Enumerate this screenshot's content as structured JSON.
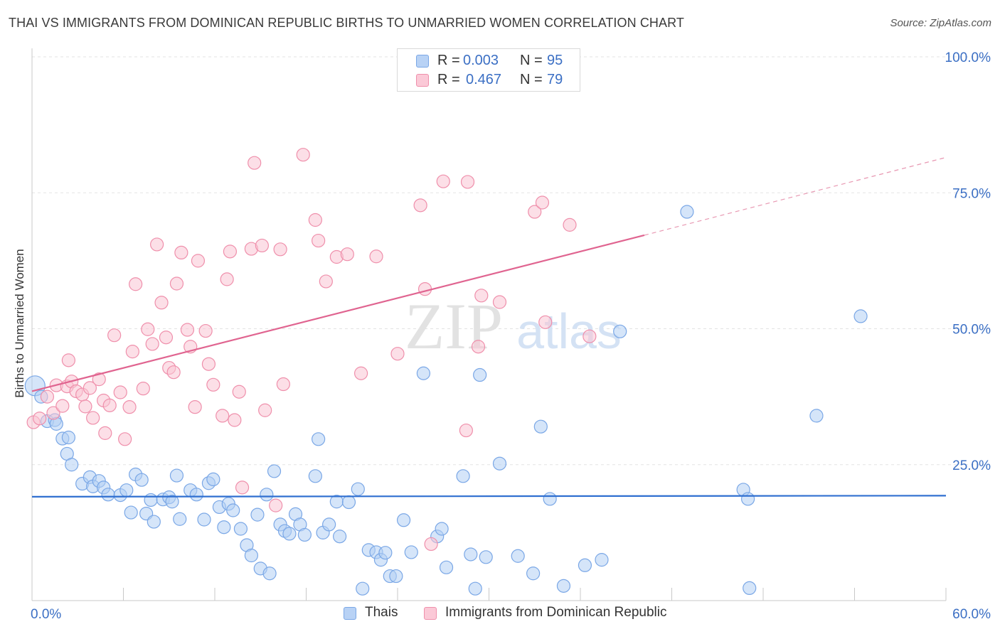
{
  "title": "THAI VS IMMIGRANTS FROM DOMINICAN REPUBLIC BIRTHS TO UNMARRIED WOMEN CORRELATION CHART",
  "source": "Source: ZipAtlas.com",
  "watermark": {
    "zip": "ZIP",
    "atlas": "atlas"
  },
  "legend_top": [
    {
      "r_label": "R =",
      "r_value": "0.003",
      "n_label": "N =",
      "n_value": "95",
      "color": "#a9c8f2"
    },
    {
      "r_label": "R =",
      "r_value": "0.467",
      "n_label": "N =",
      "n_value": "79",
      "color": "#f7b8cb"
    }
  ],
  "chart_data": {
    "type": "scatter",
    "title": "THAI VS IMMIGRANTS FROM DOMINICAN REPUBLIC BIRTHS TO UNMARRIED WOMEN CORRELATION CHART",
    "xlabel": "",
    "ylabel": "Births to Unmarried Women",
    "xlim": [
      0,
      60
    ],
    "ylim": [
      0,
      100
    ],
    "x_tick_labels": [
      "0.0%",
      "60.0%"
    ],
    "y_tick_labels": [
      "25.0%",
      "50.0%",
      "75.0%",
      "100.0%"
    ],
    "y_ticks": [
      25,
      50,
      75,
      100
    ],
    "grid": true,
    "legend_position": "top-center",
    "series": [
      {
        "name": "Thais",
        "color": "#7aa7e6",
        "fill": "#b3cff4",
        "trend": {
          "x": [
            0,
            60
          ],
          "y": [
            19.1,
            19.3
          ],
          "style": "solid"
        },
        "points": [
          [
            0.2,
            39.5
          ],
          [
            0.6,
            37.5
          ],
          [
            1.0,
            33.0
          ],
          [
            1.5,
            33.2
          ],
          [
            1.6,
            32.5
          ],
          [
            2.0,
            29.8
          ],
          [
            2.4,
            30.0
          ],
          [
            2.3,
            27.0
          ],
          [
            2.6,
            25.0
          ],
          [
            3.3,
            21.5
          ],
          [
            3.8,
            22.7
          ],
          [
            4.0,
            21.0
          ],
          [
            4.4,
            22.0
          ],
          [
            4.7,
            20.8
          ],
          [
            5.0,
            19.5
          ],
          [
            5.8,
            19.4
          ],
          [
            6.2,
            20.3
          ],
          [
            6.8,
            23.2
          ],
          [
            7.2,
            22.2
          ],
          [
            6.5,
            16.2
          ],
          [
            7.5,
            16.0
          ],
          [
            7.8,
            18.5
          ],
          [
            8.0,
            14.5
          ],
          [
            8.6,
            18.6
          ],
          [
            9.0,
            19.0
          ],
          [
            9.2,
            18.2
          ],
          [
            9.5,
            23.0
          ],
          [
            9.7,
            15.0
          ],
          [
            10.4,
            20.3
          ],
          [
            10.8,
            19.5
          ],
          [
            11.3,
            14.9
          ],
          [
            11.6,
            21.6
          ],
          [
            11.9,
            22.3
          ],
          [
            12.3,
            17.2
          ],
          [
            12.6,
            13.5
          ],
          [
            12.9,
            17.8
          ],
          [
            13.2,
            16.6
          ],
          [
            13.7,
            13.2
          ],
          [
            14.1,
            10.2
          ],
          [
            14.4,
            8.3
          ],
          [
            14.8,
            15.8
          ],
          [
            15.0,
            5.9
          ],
          [
            15.4,
            19.5
          ],
          [
            15.6,
            5.0
          ],
          [
            15.9,
            23.8
          ],
          [
            16.3,
            14.0
          ],
          [
            16.6,
            12.8
          ],
          [
            16.9,
            12.3
          ],
          [
            17.3,
            15.9
          ],
          [
            17.6,
            14.0
          ],
          [
            17.9,
            12.1
          ],
          [
            18.6,
            22.9
          ],
          [
            18.8,
            29.7
          ],
          [
            19.1,
            12.5
          ],
          [
            19.5,
            14.0
          ],
          [
            20.0,
            18.2
          ],
          [
            20.2,
            11.8
          ],
          [
            20.8,
            18.1
          ],
          [
            21.4,
            20.5
          ],
          [
            21.7,
            2.2
          ],
          [
            22.1,
            9.3
          ],
          [
            22.6,
            8.9
          ],
          [
            22.9,
            7.5
          ],
          [
            23.2,
            8.8
          ],
          [
            23.5,
            4.5
          ],
          [
            23.9,
            4.5
          ],
          [
            24.4,
            14.8
          ],
          [
            24.9,
            8.9
          ],
          [
            25.7,
            41.8
          ],
          [
            26.6,
            11.8
          ],
          [
            26.9,
            13.2
          ],
          [
            27.2,
            6.1
          ],
          [
            28.3,
            22.9
          ],
          [
            28.8,
            8.5
          ],
          [
            29.1,
            2.2
          ],
          [
            29.4,
            41.5
          ],
          [
            29.8,
            8.0
          ],
          [
            30.7,
            25.2
          ],
          [
            31.9,
            8.2
          ],
          [
            32.9,
            5.0
          ],
          [
            33.4,
            32.0
          ],
          [
            34.0,
            18.7
          ],
          [
            34.9,
            2.7
          ],
          [
            36.3,
            6.5
          ],
          [
            37.4,
            7.5
          ],
          [
            38.6,
            49.5
          ],
          [
            43.0,
            71.5
          ],
          [
            46.7,
            20.4
          ],
          [
            47.0,
            18.7
          ],
          [
            47.1,
            2.3
          ],
          [
            51.5,
            34.0
          ],
          [
            54.4,
            52.3
          ]
        ]
      },
      {
        "name": "Immigrants from Dominican Republic",
        "color": "#ef8fab",
        "fill": "#f9c4d3",
        "trend": {
          "x": [
            0,
            40.2
          ],
          "y": [
            38.5,
            67.2
          ],
          "style": "solid",
          "dashed_to": [
            60,
            81.5
          ]
        },
        "points": [
          [
            0.1,
            32.8
          ],
          [
            0.5,
            33.5
          ],
          [
            1.0,
            37.5
          ],
          [
            1.4,
            34.5
          ],
          [
            1.6,
            39.6
          ],
          [
            2.0,
            35.8
          ],
          [
            2.3,
            39.4
          ],
          [
            2.4,
            44.2
          ],
          [
            2.6,
            40.3
          ],
          [
            2.9,
            38.5
          ],
          [
            3.3,
            37.9
          ],
          [
            3.5,
            35.7
          ],
          [
            3.8,
            39.1
          ],
          [
            4.0,
            33.6
          ],
          [
            4.4,
            40.7
          ],
          [
            4.7,
            36.8
          ],
          [
            4.8,
            30.8
          ],
          [
            5.1,
            35.9
          ],
          [
            5.4,
            48.8
          ],
          [
            5.8,
            38.3
          ],
          [
            6.1,
            29.7
          ],
          [
            6.4,
            35.6
          ],
          [
            6.6,
            45.8
          ],
          [
            6.8,
            58.2
          ],
          [
            7.3,
            39.0
          ],
          [
            7.6,
            49.9
          ],
          [
            7.9,
            47.2
          ],
          [
            8.2,
            65.5
          ],
          [
            8.5,
            54.8
          ],
          [
            8.8,
            48.4
          ],
          [
            9.0,
            42.8
          ],
          [
            9.3,
            42.0
          ],
          [
            9.5,
            58.3
          ],
          [
            9.8,
            64.0
          ],
          [
            10.2,
            49.8
          ],
          [
            10.4,
            46.7
          ],
          [
            10.7,
            35.6
          ],
          [
            10.9,
            62.5
          ],
          [
            11.4,
            49.6
          ],
          [
            11.6,
            43.5
          ],
          [
            11.9,
            39.7
          ],
          [
            12.5,
            34.0
          ],
          [
            12.8,
            59.1
          ],
          [
            13.0,
            64.2
          ],
          [
            13.3,
            33.2
          ],
          [
            13.6,
            38.4
          ],
          [
            13.8,
            20.8
          ],
          [
            14.4,
            64.7
          ],
          [
            14.6,
            80.5
          ],
          [
            15.1,
            65.3
          ],
          [
            15.3,
            35.0
          ],
          [
            16.0,
            17.5
          ],
          [
            16.3,
            64.6
          ],
          [
            16.5,
            39.8
          ],
          [
            17.8,
            82.0
          ],
          [
            18.6,
            70.0
          ],
          [
            18.8,
            66.2
          ],
          [
            19.3,
            58.7
          ],
          [
            20.0,
            63.2
          ],
          [
            20.7,
            63.7
          ],
          [
            21.6,
            41.8
          ],
          [
            22.6,
            63.3
          ],
          [
            24.0,
            45.4
          ],
          [
            25.5,
            72.7
          ],
          [
            25.8,
            57.3
          ],
          [
            26.2,
            10.4
          ],
          [
            27.0,
            77.1
          ],
          [
            28.5,
            31.3
          ],
          [
            28.6,
            77.0
          ],
          [
            29.3,
            46.7
          ],
          [
            29.5,
            56.1
          ],
          [
            30.7,
            54.9
          ],
          [
            33.0,
            71.5
          ],
          [
            33.5,
            73.2
          ],
          [
            33.7,
            51.2
          ],
          [
            35.3,
            69.1
          ],
          [
            36.6,
            48.6
          ]
        ]
      }
    ]
  },
  "legend_bottom": [
    {
      "label": "Thais",
      "color": "#a9c8f2"
    },
    {
      "label": "Immigrants from Dominican Republic",
      "color": "#f7b8cb"
    }
  ]
}
